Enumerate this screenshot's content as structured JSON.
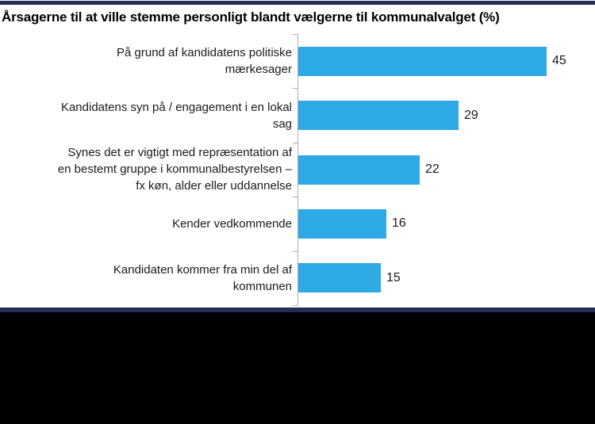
{
  "header": {
    "title": "Årsagerne til at ville stemme personligt blandt vælgerne til kommunalvalget (%)"
  },
  "chart_data": {
    "type": "bar",
    "orientation": "horizontal",
    "title": "Årsagerne til at ville stemme personligt blandt vælgerne til kommunalvalget (%)",
    "unit": "%",
    "categories": [
      "På grund af kandidatens politiske mærkesager",
      "Kandidatens syn på / engagement i en lokal sag",
      "Synes det er vigtigt med repræsentation af en bestemt gruppe i kommunalbestyrelsen – fx køn, alder eller uddannelse",
      "Kender vedkommende",
      "Kandidaten kommer fra min del af kommunen"
    ],
    "display_labels": [
      "På grund af kandidatens politiske\nmærkesager",
      "Kandidatens syn på / engagement i en lokal\nsag",
      "Synes det er vigtigt med repræsentation af\nen bestemt gruppe i kommunalbestyrelsen –\nfx køn, alder eller uddannelse",
      "Kender vedkommende",
      "Kandidaten kommer fra min del af\nkommunen"
    ],
    "values": [
      45,
      29,
      22,
      16,
      15
    ],
    "xlim": [
      0,
      50
    ],
    "gridlines": false,
    "legend": "none",
    "data_labels": true,
    "bar_color": "#2DA9E5",
    "axis_color": "#AFAFAF"
  },
  "decor": {
    "stripe_color": "#232C55",
    "footer_color": "#000000"
  }
}
